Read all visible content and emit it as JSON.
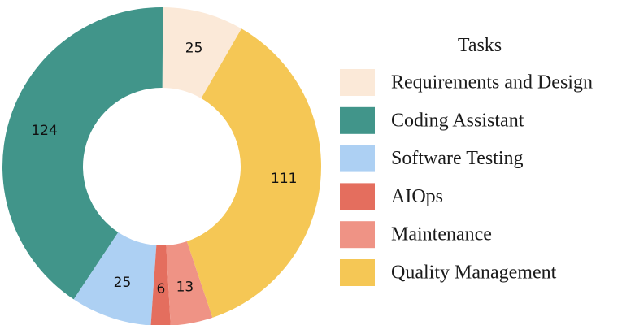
{
  "chart_data": {
    "type": "pie",
    "variant": "donut",
    "legend": {
      "title": "Tasks",
      "placement": "right"
    },
    "categories": [
      "Requirements and Design",
      "Coding Assistant",
      "Software Testing",
      "AIOps",
      "Maintenance",
      "Quality Management"
    ],
    "values": [
      25,
      124,
      25,
      6,
      13,
      111
    ],
    "colors": [
      "#fbe9d8",
      "#41958a",
      "#add0f3",
      "#e46e5e",
      "#ef9385",
      "#f5c755"
    ],
    "data_labels": [
      "25",
      "124",
      "25",
      "6",
      "13",
      "111"
    ]
  }
}
